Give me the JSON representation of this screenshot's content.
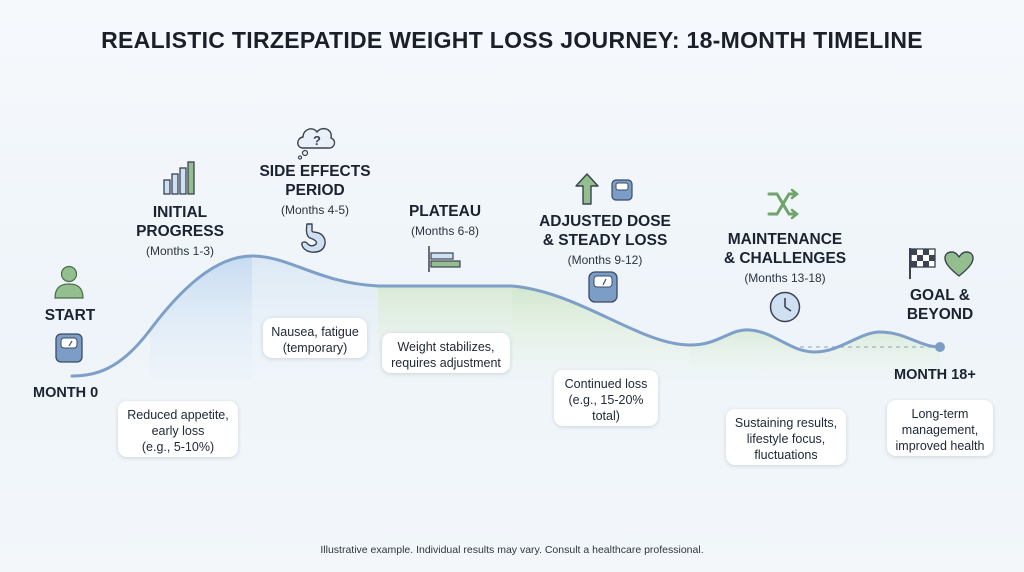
{
  "title": "REALISTIC TIRZEPATIDE WEIGHT LOSS JOURNEY: 18-MONTH TIMELINE",
  "milestones": {
    "start": "MONTH 0",
    "end": "MONTH 18+"
  },
  "phases": [
    {
      "id": "start",
      "title_lines": [
        "START"
      ],
      "range": ""
    },
    {
      "id": "initial",
      "title_lines": [
        "INITIAL",
        "PROGRESS"
      ],
      "range": "(Months 1-3)",
      "note": [
        "Reduced appetite,",
        "early loss",
        "(e.g., 5-10%)"
      ]
    },
    {
      "id": "side",
      "title_lines": [
        "SIDE EFFECTS",
        "PERIOD"
      ],
      "range": "(Months 4-5)",
      "note": [
        "Nausea, fatigue",
        "(temporary)"
      ]
    },
    {
      "id": "plateau",
      "title_lines": [
        "PLATEAU"
      ],
      "range": "(Months 6-8)",
      "note": [
        "Weight stabilizes,",
        "requires adjustment"
      ]
    },
    {
      "id": "adjusted",
      "title_lines": [
        "ADJUSTED DOSE",
        "& STEADY LOSS"
      ],
      "range": "(Months 9-12)",
      "note": [
        "Continued loss",
        "(e.g., 15-20%",
        "total)"
      ]
    },
    {
      "id": "maintenance",
      "title_lines": [
        "MAINTENANCE",
        "& CHALLENGES"
      ],
      "range": "(Months 13-18)",
      "note": [
        "Sustaining results,",
        "lifestyle focus,",
        "fluctuations"
      ]
    },
    {
      "id": "goal",
      "title_lines": [
        "GOAL &",
        "BEYOND"
      ],
      "range": "",
      "note": [
        "Long-term",
        "management,",
        "improved health"
      ]
    }
  ],
  "footer": "Illustrative example. Individual results may vary. Consult a healthcare professional.",
  "colors": {
    "curve": "#7d9fc8",
    "blue_fill": "#cfe0f3",
    "green_fill": "#dcebd6",
    "icon_green": "#93bf8e",
    "icon_blue": "#7c9ec6",
    "icon_dark": "#3b4250"
  }
}
